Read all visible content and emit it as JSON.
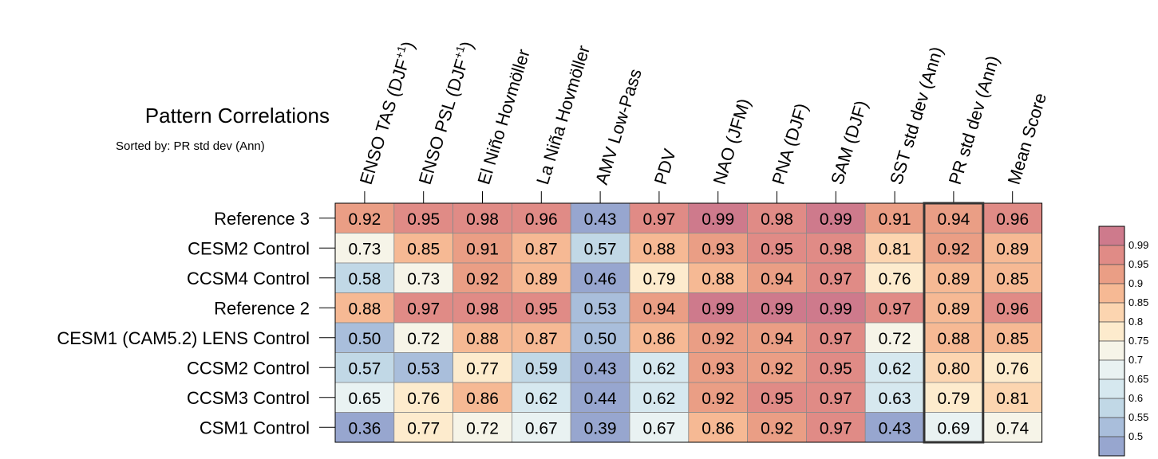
{
  "chart_data": {
    "type": "heatmap",
    "title": "Pattern Correlations",
    "subtitle": "Sorted by: PR std dev (Ann)",
    "highlighted_column": "PR std dev (Ann)",
    "columns": [
      {
        "pre": "ENSO TAS (DJF",
        "sup": "+1",
        "post": ")"
      },
      {
        "pre": "ENSO PSL (DJF",
        "sup": "+1",
        "post": ")"
      },
      {
        "pre": "El Niño Hovmöller",
        "sup": "",
        "post": ""
      },
      {
        "pre": "La Niña Hovmöller",
        "sup": "",
        "post": ""
      },
      {
        "pre": "AMV Low-Pass",
        "sup": "",
        "post": ""
      },
      {
        "pre": "PDV",
        "sup": "",
        "post": ""
      },
      {
        "pre": "NAO (JFM)",
        "sup": "",
        "post": ""
      },
      {
        "pre": "PNA (DJF)",
        "sup": "",
        "post": ""
      },
      {
        "pre": "SAM (DJF)",
        "sup": "",
        "post": ""
      },
      {
        "pre": "SST std dev (Ann)",
        "sup": "",
        "post": ""
      },
      {
        "pre": "PR std dev (Ann)",
        "sup": "",
        "post": ""
      },
      {
        "pre": "Mean Score",
        "sup": "",
        "post": ""
      }
    ],
    "rows": [
      {
        "label": "Reference 3",
        "values": [
          "0.92",
          "0.95",
          "0.98",
          "0.96",
          "0.43",
          "0.97",
          "0.99",
          "0.98",
          "0.99",
          "0.91",
          "0.94",
          "0.96"
        ]
      },
      {
        "label": "CESM2 Control",
        "values": [
          "0.73",
          "0.85",
          "0.91",
          "0.87",
          "0.57",
          "0.88",
          "0.93",
          "0.95",
          "0.98",
          "0.81",
          "0.92",
          "0.89"
        ]
      },
      {
        "label": "CCSM4 Control",
        "values": [
          "0.58",
          "0.73",
          "0.92",
          "0.89",
          "0.46",
          "0.79",
          "0.88",
          "0.94",
          "0.97",
          "0.76",
          "0.89",
          "0.85"
        ]
      },
      {
        "label": "Reference 2",
        "values": [
          "0.88",
          "0.97",
          "0.98",
          "0.95",
          "0.53",
          "0.94",
          "0.99",
          "0.99",
          "0.99",
          "0.97",
          "0.89",
          "0.96"
        ]
      },
      {
        "label": "CESM1 (CAM5.2) LENS Control",
        "values": [
          "0.50",
          "0.72",
          "0.88",
          "0.87",
          "0.50",
          "0.86",
          "0.92",
          "0.94",
          "0.97",
          "0.72",
          "0.88",
          "0.85"
        ]
      },
      {
        "label": "CCSM2 Control",
        "values": [
          "0.57",
          "0.53",
          "0.77",
          "0.59",
          "0.43",
          "0.62",
          "0.93",
          "0.92",
          "0.95",
          "0.62",
          "0.80",
          "0.76"
        ]
      },
      {
        "label": "CCSM3 Control",
        "values": [
          "0.65",
          "0.76",
          "0.86",
          "0.62",
          "0.44",
          "0.62",
          "0.92",
          "0.95",
          "0.97",
          "0.63",
          "0.79",
          "0.81"
        ]
      },
      {
        "label": "CSM1 Control",
        "values": [
          "0.36",
          "0.77",
          "0.72",
          "0.67",
          "0.39",
          "0.67",
          "0.86",
          "0.92",
          "0.97",
          "0.43",
          "0.69",
          "0.74"
        ]
      }
    ],
    "colorbar": {
      "labels": [
        "0.99",
        "0.95",
        "0.9",
        "0.85",
        "0.8",
        "0.75",
        "0.7",
        "0.65",
        "0.6",
        "0.55",
        "0.5"
      ],
      "thresholds": [
        0.5,
        0.55,
        0.6,
        0.65,
        0.7,
        0.75,
        0.8,
        0.85,
        0.9,
        0.95,
        0.99
      ],
      "colors": [
        "#97a6cf",
        "#a9bedb",
        "#c1d8e6",
        "#d6e8ef",
        "#e9f2f2",
        "#f6f4e8",
        "#fdebcd",
        "#fcd5b0",
        "#f6b994",
        "#ea9e85",
        "#e08b86",
        "#ce7a8c"
      ]
    }
  }
}
